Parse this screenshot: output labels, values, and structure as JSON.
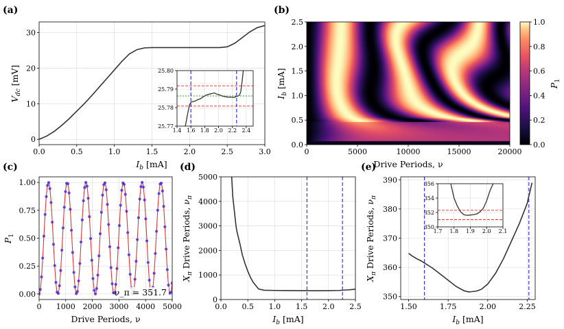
{
  "figure": {
    "panel_labels": [
      "(a)",
      "(b)",
      "(c)",
      "(d)",
      "(e)"
    ],
    "palette": {
      "curve": "#333333",
      "blue_line": "#3333ee",
      "red_line": "#ee2222",
      "green_line": "#22aa22",
      "points": "#4433dd",
      "fit": "#dd3333"
    }
  },
  "chart_data": [
    {
      "id": "a",
      "type": "line",
      "label": "(a)",
      "xlabel": "I_b [mA]",
      "ylabel": "V_dc [mV]",
      "xlim": [
        0,
        3
      ],
      "ylim": [
        -1.5,
        33
      ],
      "xticks": [
        "0.0",
        "0.5",
        "1.0",
        "1.5",
        "2.0",
        "2.5",
        "3.0"
      ],
      "yticks": [
        "0",
        "10",
        "20",
        "30"
      ],
      "x": [
        0,
        0.1,
        0.2,
        0.3,
        0.4,
        0.5,
        0.6,
        0.7,
        0.8,
        0.9,
        1.0,
        1.1,
        1.2,
        1.3,
        1.4,
        1.5,
        1.6,
        1.8,
        2.0,
        2.2,
        2.4,
        2.5,
        2.6,
        2.7,
        2.8,
        2.9,
        3.0
      ],
      "y": [
        0,
        0.9,
        2.2,
        3.9,
        5.8,
        7.9,
        10.0,
        12.3,
        14.7,
        17.1,
        19.5,
        21.9,
        24.0,
        25.2,
        25.7,
        25.78,
        25.78,
        25.79,
        25.79,
        25.79,
        25.79,
        26.0,
        27.0,
        28.6,
        30.2,
        31.4,
        32.0
      ],
      "inset": {
        "xlim": [
          1.4,
          2.5
        ],
        "ylim": [
          25.77,
          25.8
        ],
        "xticks": [
          "1.4",
          "1.6",
          "1.8",
          "2.0",
          "2.2",
          "2.4"
        ],
        "yticks": [
          "25.77",
          "25.78",
          "25.79",
          "25.80"
        ],
        "x": [
          1.52,
          1.55,
          1.58,
          1.6,
          1.62,
          1.66,
          1.7,
          1.74,
          1.78,
          1.82,
          1.86,
          1.9,
          1.94,
          1.98,
          2.02,
          2.06,
          2.1,
          2.14,
          2.18,
          2.22,
          2.26,
          2.3,
          2.32,
          2.34,
          2.36
        ],
        "y": [
          25.77,
          25.776,
          25.7815,
          25.7828,
          25.7832,
          25.7835,
          25.7843,
          25.7848,
          25.7859,
          25.7867,
          25.7872,
          25.7876,
          25.7879,
          25.7872,
          25.7868,
          25.7862,
          25.7859,
          25.7856,
          25.7857,
          25.7855,
          25.786,
          25.7866,
          25.7885,
          25.794,
          25.801
        ],
        "vlines": [
          1.6,
          2.26
        ],
        "hlines_red": [
          25.7808,
          25.7918
        ],
        "hline_green": 25.7863
      }
    },
    {
      "id": "b",
      "type": "heatmap",
      "label": "(b)",
      "xlabel": "Drive Periods, ν",
      "ylabel": "I_b [mA]",
      "xlim": [
        0,
        20000
      ],
      "ylim": [
        0,
        2.5
      ],
      "xticks": [
        "0",
        "5000",
        "10000",
        "15000",
        "20000"
      ],
      "yticks": [
        "0.0",
        "0.5",
        "1.0",
        "1.5",
        "2.0",
        "2.5"
      ],
      "colorbar": {
        "label": "P_1",
        "range": [
          0,
          1
        ],
        "ticks": [
          "0.0",
          "0.2",
          "0.4",
          "0.6",
          "0.8",
          "1.0"
        ],
        "colormap": "magma"
      }
    },
    {
      "id": "c",
      "type": "scatter",
      "label": "(c)",
      "xlabel": "Drive Periods, ν",
      "ylabel": "P_1",
      "xlim": [
        0,
        5000
      ],
      "ylim": [
        -0.05,
        1.05
      ],
      "xticks": [
        "0",
        "1000",
        "2000",
        "3000",
        "4000",
        "5000"
      ],
      "yticks": [
        "0.00",
        "0.25",
        "0.50",
        "0.75",
        "1.00"
      ],
      "period": 703.4,
      "annotation": "ν_π = 351.7"
    },
    {
      "id": "d",
      "type": "line",
      "label": "(d)",
      "xlabel": "I_b [mA]",
      "ylabel": "X_π Drive Periods, ν_π",
      "xlim": [
        0,
        2.5
      ],
      "ylim": [
        0,
        5000
      ],
      "xticks": [
        "0.0",
        "0.5",
        "1.0",
        "1.5",
        "2.0",
        "2.5"
      ],
      "yticks": [
        "0",
        "1000",
        "2000",
        "3000",
        "4000",
        "5000"
      ],
      "x": [
        0.2,
        0.22,
        0.25,
        0.28,
        0.3,
        0.35,
        0.4,
        0.45,
        0.5,
        0.55,
        0.6,
        0.7,
        0.8,
        1.0,
        1.2,
        1.5,
        1.8,
        2.0,
        2.2,
        2.4,
        2.5
      ],
      "y": [
        5000,
        4200,
        3600,
        3000,
        2750,
        2300,
        1800,
        1450,
        1150,
        900,
        700,
        430,
        380,
        370,
        365,
        360,
        358,
        360,
        370,
        400,
        420
      ],
      "vlines": [
        1.6,
        2.26
      ]
    },
    {
      "id": "e",
      "type": "line",
      "label": "(e)",
      "xlabel": "I_b [mA]",
      "ylabel": "X_π Drive Periods, ν_π",
      "xlim": [
        1.45,
        2.3
      ],
      "ylim": [
        349,
        391
      ],
      "xticks": [
        "1.50",
        "1.75",
        "2.00",
        "2.25"
      ],
      "yticks": [
        "350",
        "360",
        "370",
        "380",
        "390"
      ],
      "x": [
        1.5,
        1.52,
        1.55,
        1.58,
        1.6,
        1.65,
        1.7,
        1.75,
        1.8,
        1.85,
        1.88,
        1.9,
        1.93,
        1.96,
        2.0,
        2.05,
        2.1,
        2.15,
        2.2,
        2.25,
        2.28
      ],
      "y": [
        364.8,
        364.0,
        363.0,
        362.2,
        361.5,
        359.8,
        357.7,
        355.6,
        353.5,
        352.0,
        351.6,
        351.7,
        351.9,
        352.5,
        354.3,
        358.0,
        363.0,
        369.0,
        375.0,
        382.0,
        389.0
      ],
      "vlines": [
        1.6,
        2.26
      ],
      "inset": {
        "xlim": [
          1.7,
          2.1
        ],
        "ylim": [
          350,
          356
        ],
        "xticks": [
          "1.7",
          "1.8",
          "1.9",
          "2.0",
          "2.1"
        ],
        "yticks": [
          "350",
          "352",
          "354",
          "356"
        ],
        "x": [
          1.78,
          1.8,
          1.82,
          1.84,
          1.86,
          1.88,
          1.9,
          1.92,
          1.94,
          1.96,
          1.98,
          2.0,
          2.02,
          2.04
        ],
        "y": [
          356.0,
          354.0,
          352.9,
          352.1,
          351.7,
          351.6,
          351.65,
          351.7,
          351.8,
          352.1,
          352.6,
          353.6,
          355.0,
          356.0
        ],
        "hlines_red": [
          351.0,
          352.3
        ]
      }
    }
  ]
}
